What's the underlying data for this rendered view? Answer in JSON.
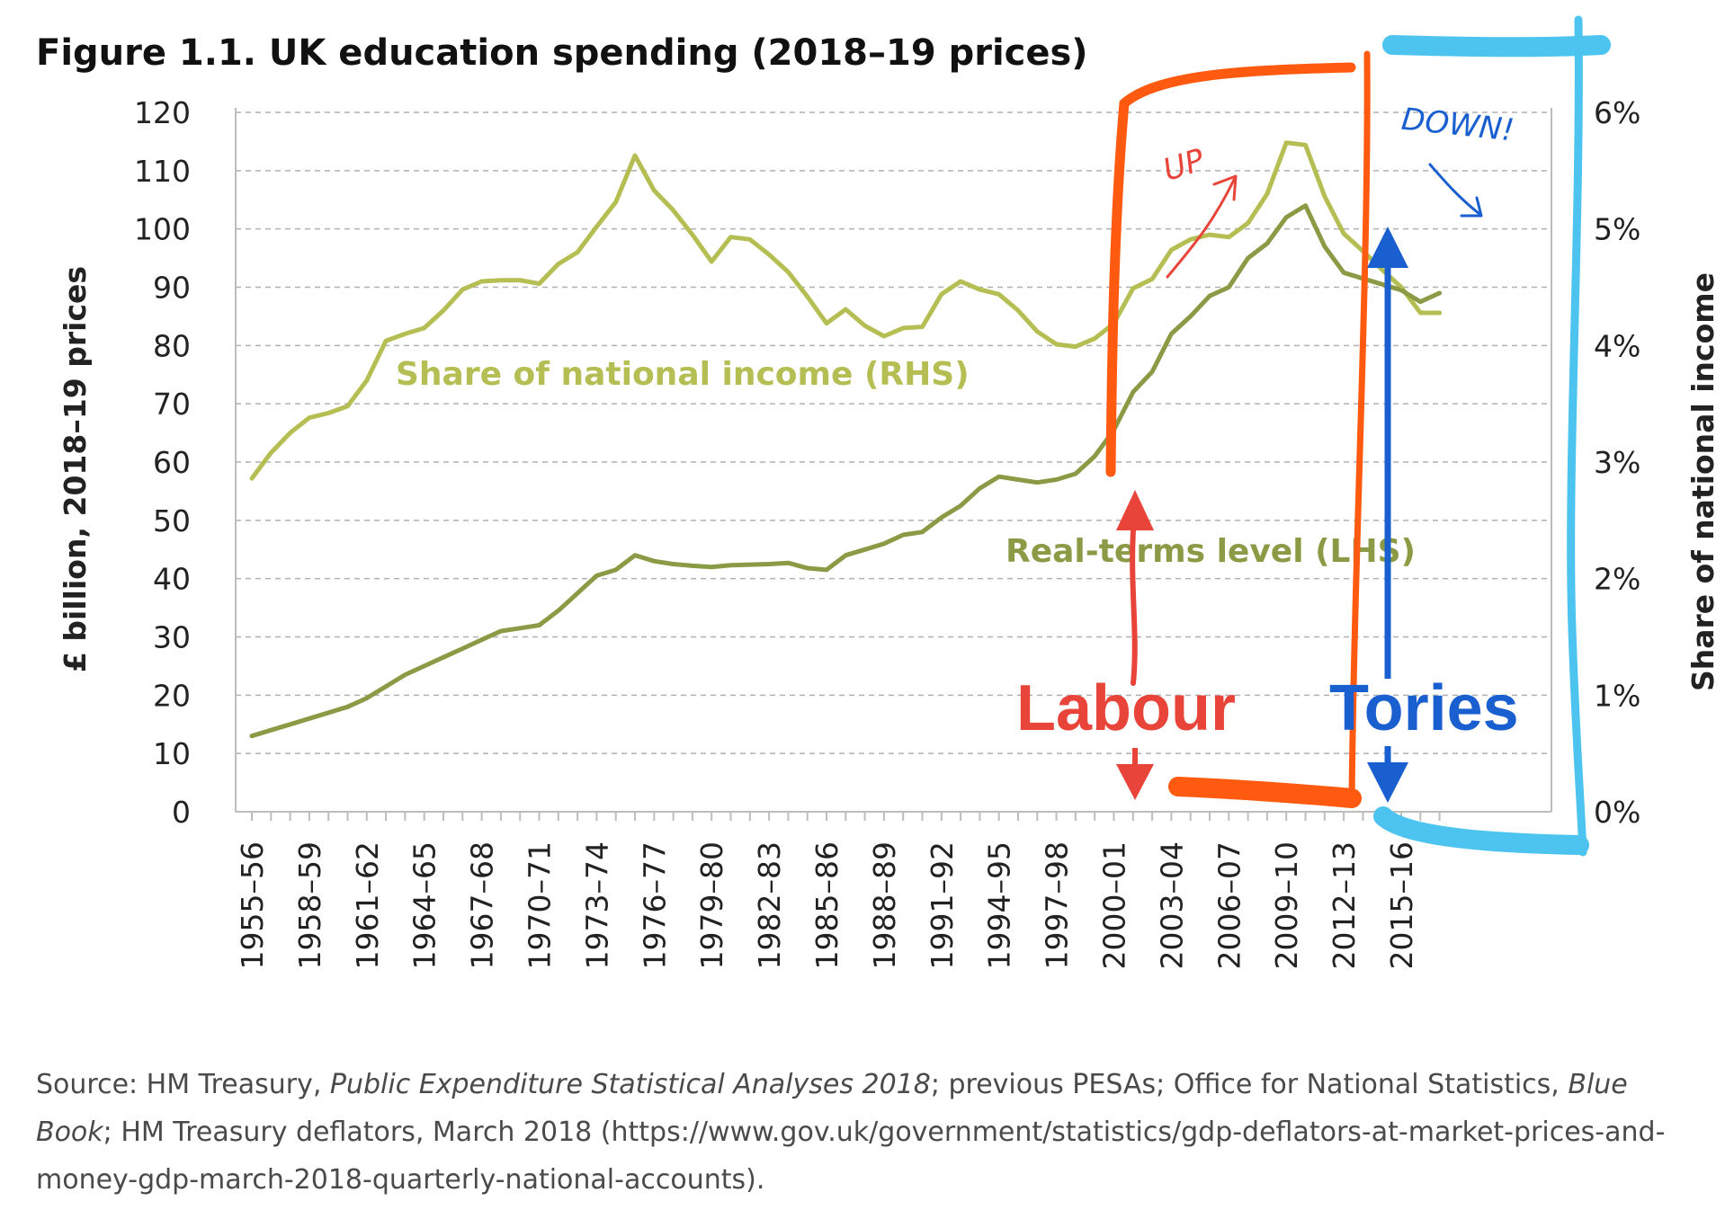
{
  "chart_data": {
    "type": "line",
    "title": "Figure 1.1.  UK education spending (2018–19 prices)",
    "ylabel": "£ billion, 2018–19 prices",
    "ylabel_right": "Share of national income",
    "ylim": [
      0,
      120
    ],
    "ylim_right": [
      0,
      6
    ],
    "y_ticks": [
      "0",
      "10",
      "20",
      "30",
      "40",
      "50",
      "60",
      "70",
      "80",
      "90",
      "100",
      "110",
      "120"
    ],
    "y_right_ticks": [
      "0%",
      "1%",
      "2%",
      "3%",
      "4%",
      "5%",
      "6%"
    ],
    "x_tick_labels": [
      "1955–56",
      "1958–59",
      "1961–62",
      "1964–65",
      "1967–68",
      "1970–71",
      "1973–74",
      "1976–77",
      "1979–80",
      "1982–83",
      "1985–86",
      "1988–89",
      "1991–92",
      "1994–95",
      "1997–98",
      "2000–01",
      "2003–04",
      "2006–07",
      "2009–10",
      "2012–13",
      "2015–16"
    ],
    "x": [
      "1955–56",
      "1956–57",
      "1957–58",
      "1958–59",
      "1959–60",
      "1960–61",
      "1961–62",
      "1962–63",
      "1963–64",
      "1964–65",
      "1965–66",
      "1966–67",
      "1967–68",
      "1968–69",
      "1969–70",
      "1970–71",
      "1971–72",
      "1972–73",
      "1973–74",
      "1974–75",
      "1975–76",
      "1976–77",
      "1977–78",
      "1978–79",
      "1979–80",
      "1980–81",
      "1981–82",
      "1982–83",
      "1983–84",
      "1984–85",
      "1985–86",
      "1986–87",
      "1987–88",
      "1988–89",
      "1989–90",
      "1990–91",
      "1991–92",
      "1992–93",
      "1993–94",
      "1994–95",
      "1995–96",
      "1996–97",
      "1997–98",
      "1998–99",
      "1999–00",
      "2000–01",
      "2001–02",
      "2002–03",
      "2003–04",
      "2004–05",
      "2005–06",
      "2006–07",
      "2007–08",
      "2008–09",
      "2009–10",
      "2010–11",
      "2011–12",
      "2012–13",
      "2013–14",
      "2014–15",
      "2015–16",
      "2016–17",
      "2017–18"
    ],
    "series": [
      {
        "name": "Share of national income (RHS)",
        "axis": "right",
        "color": "#b5be52",
        "values": [
          2.86,
          3.08,
          3.25,
          3.38,
          3.42,
          3.48,
          3.7,
          4.04,
          4.1,
          4.15,
          4.3,
          4.48,
          4.55,
          4.56,
          4.56,
          4.53,
          4.7,
          4.8,
          5.02,
          5.23,
          5.63,
          5.33,
          5.16,
          4.95,
          4.72,
          4.93,
          4.91,
          4.78,
          4.63,
          4.42,
          4.19,
          4.31,
          4.17,
          4.08,
          4.15,
          4.16,
          4.44,
          4.55,
          4.48,
          4.44,
          4.3,
          4.12,
          4.01,
          3.99,
          4.06,
          4.19,
          4.49,
          4.57,
          4.82,
          4.91,
          4.95,
          4.93,
          5.05,
          5.3,
          5.74,
          5.72,
          5.28,
          4.96,
          4.81,
          4.65,
          4.5,
          4.28,
          4.28
        ]
      },
      {
        "name": "Real-terms level (LHS)",
        "axis": "left",
        "color": "#8a9a45",
        "values": [
          13,
          14,
          15,
          16,
          17,
          18,
          19.5,
          21.5,
          23.5,
          25,
          26.5,
          28,
          29.5,
          31,
          31.5,
          32,
          34.5,
          37.5,
          40.5,
          41.5,
          44,
          43,
          42.5,
          42.2,
          42,
          42.3,
          42.4,
          42.5,
          42.7,
          41.8,
          41.5,
          44,
          45,
          46,
          47.5,
          48,
          50.5,
          52.5,
          55.5,
          57.5,
          57,
          56.5,
          57,
          58,
          61,
          65.5,
          72,
          75.5,
          82,
          85,
          88.5,
          90,
          95,
          97.5,
          102,
          104,
          97,
          92.5,
          91.5,
          90.5,
          89.5,
          87.5,
          89
        ]
      }
    ],
    "annotations": {
      "series_label_rhs": "Share of national income (RHS)",
      "series_label_lhs": "Real-terms level (LHS)",
      "labour": "Labour",
      "tories": "Tories",
      "up": "UP",
      "down": "DOWN!"
    },
    "colors": {
      "labour": "#e8443a",
      "tories": "#1a5fd0",
      "highlight_orange": "#ff5a10",
      "highlight_cyan": "#4cc4ef",
      "grid": "#b0b0b0"
    }
  },
  "source": {
    "prefix": "Source: HM Treasury, ",
    "pub1": "Public Expenditure Statistical Analyses 2018",
    "mid1": "; previous PESAs; Office for National Statistics, ",
    "pub2": "Blue Book",
    "rest": "; HM Treasury deflators, March 2018 (https://www.gov.uk/government/statistics/gdp-deflators-at-market-prices-and-money-gdp-march-2018-quarterly-national-accounts)."
  }
}
